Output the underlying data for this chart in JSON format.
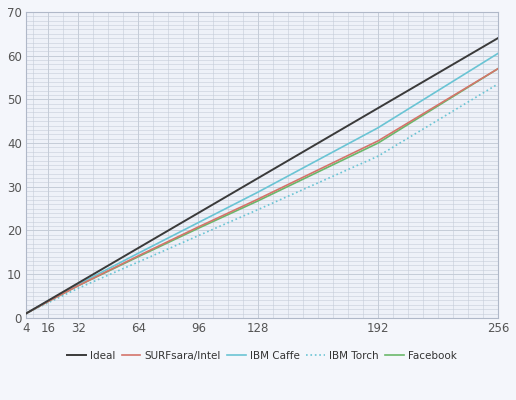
{
  "x_nodes": [
    4,
    16,
    32,
    64,
    96,
    128,
    192,
    256
  ],
  "ideal": [
    1.0,
    4.0,
    8.0,
    16.0,
    24.0,
    32.0,
    48.0,
    64.0
  ],
  "surfsara_intel": [
    1.0,
    3.8,
    7.4,
    14.2,
    20.8,
    27.2,
    40.5,
    57.0
  ],
  "ibm_caffe": [
    1.0,
    3.9,
    7.7,
    14.8,
    21.8,
    28.8,
    43.5,
    60.5
  ],
  "ibm_torch": [
    1.0,
    3.5,
    6.8,
    12.8,
    18.8,
    24.8,
    37.0,
    53.5
  ],
  "facebook": [
    1.0,
    3.8,
    7.4,
    14.0,
    20.5,
    26.8,
    40.0,
    57.0
  ],
  "xlim": [
    4,
    256
  ],
  "ylim": [
    0,
    70
  ],
  "xticks": [
    4,
    16,
    32,
    64,
    96,
    128,
    192,
    256
  ],
  "yticks": [
    0,
    10,
    20,
    30,
    40,
    50,
    60,
    70
  ],
  "legend_labels": [
    "Ideal",
    "SURFsara/Intel",
    "IBM Caffe",
    "IBM Torch",
    "Facebook"
  ],
  "colors": {
    "ideal": "#3a3a3a",
    "surfsara_intel": "#d4746a",
    "ibm_caffe": "#6ac4d4",
    "ibm_torch": "#6ac4d4",
    "facebook": "#6ab86a"
  },
  "bg_color": "#eef1f8",
  "fig_bg_color": "#f4f6fb",
  "grid_color": "#c5ccd8",
  "minor_x_spacing": 8,
  "minor_y_spacing": 1
}
